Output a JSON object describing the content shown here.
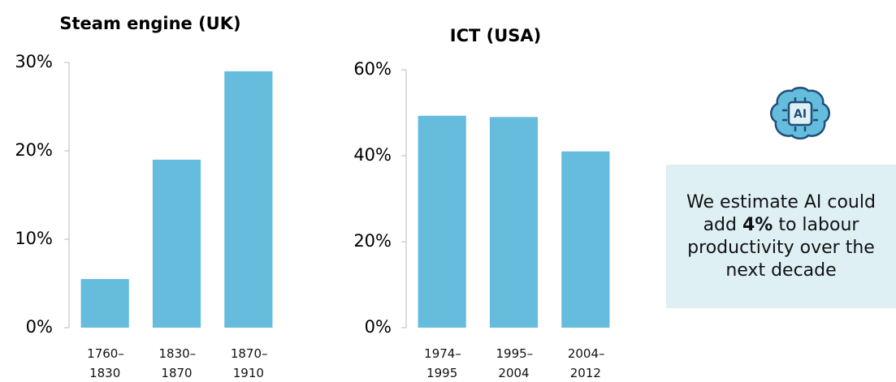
{
  "chart_data": [
    {
      "type": "bar",
      "title": "Steam engine (UK)",
      "categories": [
        "1760–1830",
        "1830–1870",
        "1870–1910"
      ],
      "values": [
        5.5,
        19,
        29
      ],
      "color": "#65bcdc",
      "ylim": [
        0,
        30
      ],
      "yticks": [
        {
          "value": 0,
          "label": "0%"
        },
        {
          "value": 10,
          "label": "10%"
        },
        {
          "value": 20,
          "label": "20%"
        },
        {
          "value": 30,
          "label": "30%"
        }
      ]
    },
    {
      "type": "bar",
      "title": "ICT (USA)",
      "categories": [
        "1974–1995",
        "1995–2004",
        "2004–2012"
      ],
      "values": [
        49.3,
        49,
        41
      ],
      "color": "#65bcdc",
      "ylim": [
        0,
        60
      ],
      "yticks": [
        {
          "value": 0,
          "label": "0%"
        },
        {
          "value": 20,
          "label": "20%"
        },
        {
          "value": 40,
          "label": "40%"
        },
        {
          "value": 60,
          "label": "60%"
        }
      ]
    }
  ],
  "icon_label": "AI",
  "callout": {
    "text_before": "We estimate AI could add",
    "bold": "4%",
    "text_after": "to labour productivity over the next decade"
  }
}
